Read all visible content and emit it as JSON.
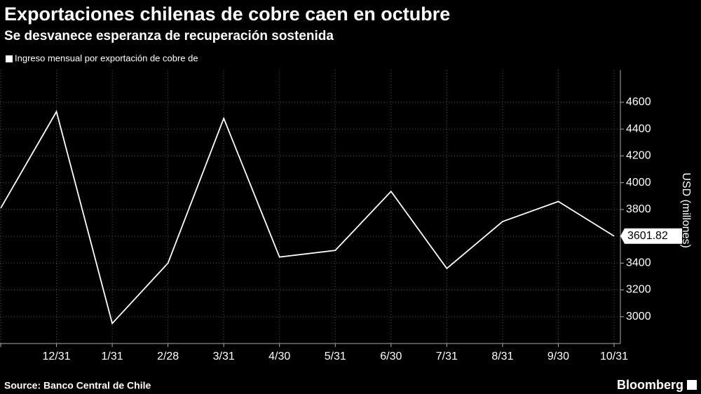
{
  "chart_data": {
    "type": "line",
    "title": "Exportaciones chilenas de cobre caen en octubre",
    "subtitle": "Se desvanece esperanza de recuperación sostenida",
    "y_label": "USD (millones)",
    "source": "Source: Banco Central de Chile",
    "brand": "Bloomberg",
    "categories": [
      null,
      "12/31",
      "1/31",
      "2/28",
      "3/31",
      "4/30",
      "5/31",
      "6/30",
      "7/31",
      "8/31",
      "9/30",
      "10/31"
    ],
    "series": [
      {
        "name": "Ingreso mensual por exportación de cobre de",
        "color": "#ffffff",
        "values": [
          3810,
          4530,
          2950,
          3400,
          4480,
          3445,
          3495,
          3935,
          3360,
          3710,
          3860,
          3601.82
        ]
      }
    ],
    "ylim": [
      2800,
      4840
    ],
    "yticks": [
      3000,
      3200,
      3400,
      3600,
      3800,
      4000,
      4200,
      4400,
      4600
    ],
    "grid": true
  }
}
